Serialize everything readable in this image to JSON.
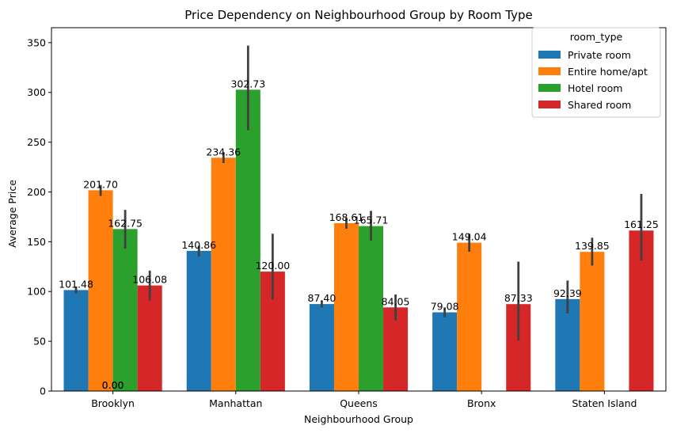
{
  "chart_data": {
    "type": "bar",
    "title": "Price Dependency on Neighbourhood Group by Room Type",
    "xlabel": "Neighbourhood Group",
    "ylabel": "Average Price",
    "ylim": [
      0,
      365
    ],
    "yticks": [
      0,
      50,
      100,
      150,
      200,
      250,
      300,
      350
    ],
    "categories": [
      "Brooklyn",
      "Manhattan",
      "Queens",
      "Bronx",
      "Staten Island"
    ],
    "legend": {
      "title": "room_type",
      "placement": "top-right"
    },
    "series": [
      {
        "name": "Private room",
        "color": "#1f77b4",
        "values": [
          101.48,
          140.86,
          87.4,
          79.08,
          92.39
        ],
        "ci": [
          [
            98,
            105
          ],
          [
            135,
            146
          ],
          [
            84,
            91
          ],
          [
            74,
            84
          ],
          [
            78,
            111
          ]
        ]
      },
      {
        "name": "Entire home/apt",
        "color": "#ff7f0e",
        "values": [
          201.7,
          234.36,
          168.61,
          149.04,
          139.85
        ],
        "ci": [
          [
            196,
            207
          ],
          [
            229,
            240
          ],
          [
            163,
            174
          ],
          [
            140,
            158
          ],
          [
            126,
            154
          ]
        ]
      },
      {
        "name": "Hotel room",
        "color": "#2ca02c",
        "values": [
          162.75,
          302.73,
          165.71,
          null,
          null
        ],
        "ci": [
          [
            143,
            182
          ],
          [
            262,
            347
          ],
          [
            151,
            181
          ],
          null,
          null
        ]
      },
      {
        "name": "Shared room",
        "color": "#d62728",
        "values": [
          106.08,
          120.0,
          84.05,
          87.33,
          161.25
        ],
        "ci": [
          [
            91,
            121
          ],
          [
            92,
            158
          ],
          [
            71,
            97
          ],
          [
            51,
            130
          ],
          [
            131,
            198
          ]
        ]
      }
    ],
    "annotations": [
      {
        "text": "0.00",
        "x": "Brooklyn",
        "y": 0
      },
      {
        "text": "0.00",
        "x": "Brooklyn",
        "y": 0
      }
    ],
    "errorbar_color": "#404040",
    "grid": false
  }
}
